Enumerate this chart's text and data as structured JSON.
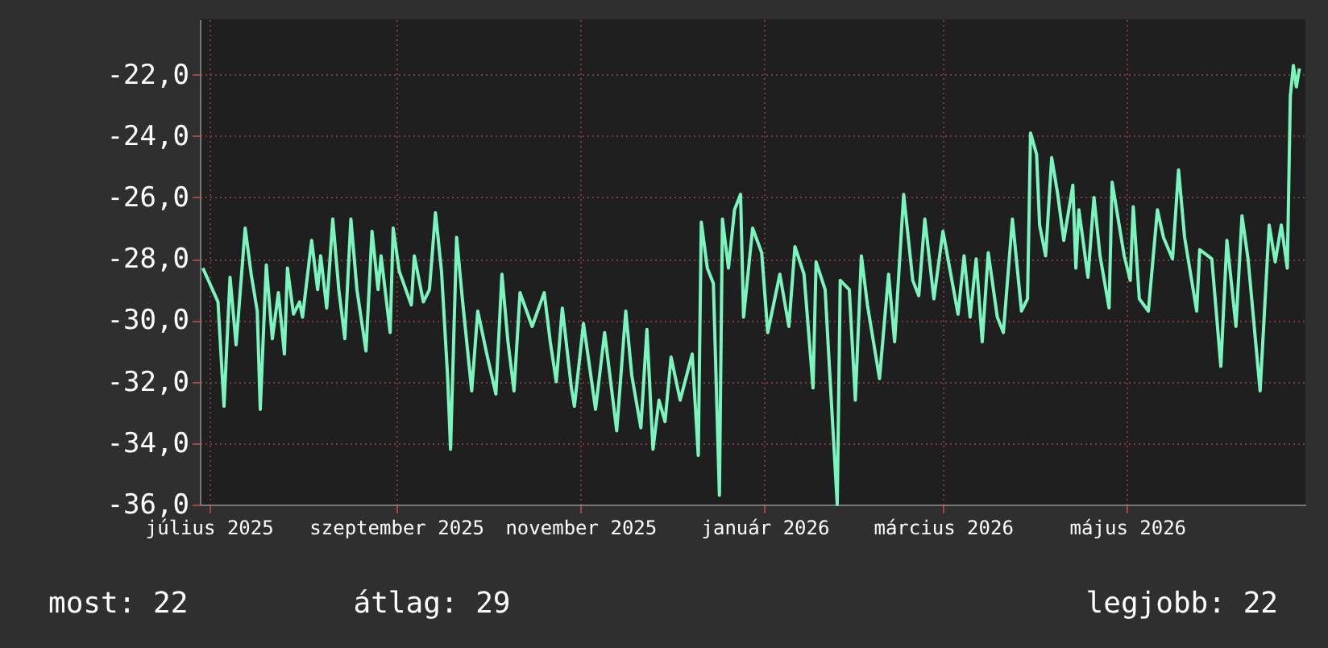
{
  "chart_data": {
    "type": "line",
    "x": [
      "2025-07-13",
      "2025-07-18",
      "2025-07-20",
      "2025-07-22",
      "2025-07-24",
      "2025-07-27",
      "2025-07-29",
      "2025-07-31",
      "2025-08-01",
      "2025-08-03",
      "2025-08-05",
      "2025-08-07",
      "2025-08-09",
      "2025-08-10",
      "2025-08-12",
      "2025-08-14",
      "2025-08-15",
      "2025-08-18",
      "2025-08-20",
      "2025-08-21",
      "2025-08-23",
      "2025-08-25",
      "2025-08-27",
      "2025-08-29",
      "2025-08-31",
      "2025-09-02",
      "2025-09-05",
      "2025-09-07",
      "2025-09-09",
      "2025-09-10",
      "2025-09-13",
      "2025-09-14",
      "2025-09-16",
      "2025-09-20",
      "2025-09-21",
      "2025-09-24",
      "2025-09-26",
      "2025-09-28",
      "2025-09-30",
      "2025-10-02",
      "2025-10-03",
      "2025-10-05",
      "2025-10-07",
      "2025-10-10",
      "2025-10-12",
      "2025-10-15",
      "2025-10-18",
      "2025-10-20",
      "2025-10-22",
      "2025-10-24",
      "2025-10-26",
      "2025-10-30",
      "2025-11-03",
      "2025-11-05",
      "2025-11-07",
      "2025-11-09",
      "2025-11-12",
      "2025-11-13",
      "2025-11-16",
      "2025-11-20",
      "2025-11-23",
      "2025-11-27",
      "2025-11-30",
      "2025-12-02",
      "2025-12-05",
      "2025-12-07",
      "2025-12-09",
      "2025-12-11",
      "2025-12-13",
      "2025-12-15",
      "2025-12-18",
      "2025-12-22",
      "2025-12-24",
      "2025-12-25",
      "2025-12-27",
      "2025-12-29",
      "2025-12-31",
      "2026-01-01",
      "2026-01-03",
      "2026-01-05",
      "2026-01-07",
      "2026-01-08",
      "2026-01-11",
      "2026-01-14",
      "2026-01-16",
      "2026-01-20",
      "2026-01-23",
      "2026-01-25",
      "2026-01-28",
      "2026-01-31",
      "2026-02-01",
      "2026-02-04",
      "2026-02-05",
      "2026-02-08",
      "2026-02-09",
      "2026-02-12",
      "2026-02-14",
      "2026-02-16",
      "2026-02-18",
      "2026-02-22",
      "2026-02-25",
      "2026-02-27",
      "2026-03-02",
      "2026-03-05",
      "2026-03-07",
      "2026-03-09",
      "2026-03-12",
      "2026-03-15",
      "2026-03-20",
      "2026-03-22",
      "2026-03-24",
      "2026-03-26",
      "2026-03-28",
      "2026-03-30",
      "2026-04-02",
      "2026-04-04",
      "2026-04-07",
      "2026-04-10",
      "2026-04-12",
      "2026-04-13",
      "2026-04-15",
      "2026-04-16",
      "2026-04-18",
      "2026-04-20",
      "2026-04-22",
      "2026-04-24",
      "2026-04-27",
      "2026-04-28",
      "2026-04-29",
      "2026-05-02",
      "2026-05-04",
      "2026-05-06",
      "2026-05-09",
      "2026-05-10",
      "2026-05-14",
      "2026-05-16",
      "2026-05-17",
      "2026-05-19",
      "2026-05-22",
      "2026-05-25",
      "2026-05-27",
      "2026-05-30",
      "2026-06-01",
      "2026-06-03",
      "2026-06-07",
      "2026-06-08",
      "2026-06-12",
      "2026-06-15",
      "2026-06-17",
      "2026-06-20",
      "2026-06-22",
      "2026-06-24",
      "2026-06-28",
      "2026-07-01",
      "2026-07-03",
      "2026-07-05",
      "2026-07-07",
      "2026-07-08",
      "2026-07-09",
      "2026-07-10",
      "2026-07-11"
    ],
    "series": [
      {
        "color": "#7af5bd",
        "values": [
          -28.3,
          -29.4,
          -32.8,
          -28.6,
          -30.8,
          -27.0,
          -28.5,
          -29.7,
          -32.9,
          -28.2,
          -30.6,
          -29.1,
          -31.1,
          -28.3,
          -29.8,
          -29.4,
          -29.9,
          -27.4,
          -29.0,
          -27.9,
          -29.6,
          -26.7,
          -29.0,
          -30.6,
          -26.7,
          -29.0,
          -31.0,
          -27.1,
          -29.0,
          -27.9,
          -30.4,
          -27.0,
          -28.4,
          -29.5,
          -27.9,
          -29.4,
          -29.0,
          -26.5,
          -28.4,
          -31.8,
          -34.2,
          -27.3,
          -29.4,
          -32.3,
          -29.7,
          -31.1,
          -32.4,
          -28.5,
          -30.7,
          -32.3,
          -29.1,
          -30.2,
          -29.1,
          -30.7,
          -32.0,
          -29.6,
          -32.2,
          -32.8,
          -30.1,
          -32.9,
          -30.4,
          -33.6,
          -29.7,
          -31.8,
          -33.5,
          -30.3,
          -34.2,
          -32.6,
          -33.3,
          -31.2,
          -32.6,
          -31.1,
          -34.4,
          -26.8,
          -28.3,
          -28.8,
          -35.7,
          -26.7,
          -28.3,
          -26.4,
          -25.9,
          -29.9,
          -27.0,
          -27.8,
          -30.4,
          -28.5,
          -30.2,
          -27.6,
          -28.5,
          -32.2,
          -28.1,
          -29.0,
          -30.8,
          -36.0,
          -28.7,
          -29.0,
          -32.6,
          -27.9,
          -29.5,
          -31.9,
          -28.5,
          -30.7,
          -25.9,
          -28.7,
          -29.2,
          -26.7,
          -29.3,
          -27.1,
          -29.8,
          -27.9,
          -29.9,
          -28.0,
          -30.7,
          -27.8,
          -29.9,
          -30.4,
          -26.7,
          -29.7,
          -29.3,
          -23.9,
          -24.6,
          -26.9,
          -27.9,
          -24.7,
          -25.9,
          -27.4,
          -25.6,
          -28.3,
          -26.4,
          -28.6,
          -26.0,
          -27.9,
          -29.6,
          -25.5,
          -27.9,
          -28.7,
          -26.3,
          -29.3,
          -29.7,
          -26.4,
          -27.3,
          -28.0,
          -25.1,
          -27.3,
          -29.7,
          -27.7,
          -28.0,
          -31.5,
          -27.4,
          -30.2,
          -26.6,
          -28.0,
          -32.3,
          -26.9,
          -28.1,
          -26.9,
          -28.3,
          -22.7,
          -21.7,
          -22.4,
          -21.8
        ]
      }
    ],
    "xlim": [
      "2025-07-12",
      "2026-07-13"
    ],
    "xticks": [
      {
        "value": "2025-07-15",
        "label": "július 2025"
      },
      {
        "value": "2025-09-15",
        "label": "szeptember 2025"
      },
      {
        "value": "2025-11-15",
        "label": "november 2025"
      },
      {
        "value": "2026-01-15",
        "label": "január 2026"
      },
      {
        "value": "2026-03-15",
        "label": "március 2026"
      },
      {
        "value": "2026-05-15",
        "label": "május 2026"
      }
    ],
    "ylim": [
      -36,
      -20.2
    ],
    "yticks": [
      {
        "value": -36,
        "label": "-36,0"
      },
      {
        "value": -34,
        "label": "-34,0"
      },
      {
        "value": -32,
        "label": "-32,0"
      },
      {
        "value": -30,
        "label": "-30,0"
      },
      {
        "value": -28,
        "label": "-28,0"
      },
      {
        "value": -26,
        "label": "-26,0"
      },
      {
        "value": -24,
        "label": "-24,0"
      },
      {
        "value": -22,
        "label": "-22,0"
      }
    ],
    "grid": true,
    "marker": "none",
    "line_style": "solid",
    "annotations": [
      "most: 22",
      "átlag: 29",
      "legjobb: 22"
    ]
  }
}
